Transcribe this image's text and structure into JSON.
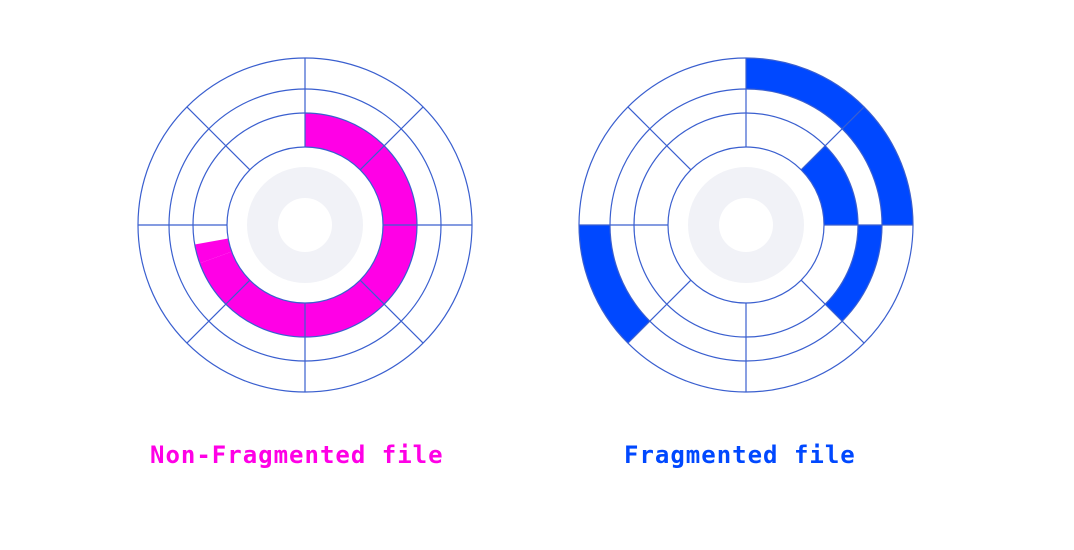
{
  "colors": {
    "grid": "#3a5fcf",
    "hub": "#f1f2f7",
    "background": "#ffffff",
    "non_fragmented": "#ff00e6",
    "fragmented": "#0048ff"
  },
  "disks": [
    {
      "id": "non-fragmented",
      "caption": "Non-Fragmented file",
      "caption_color": "#ff00e6",
      "fill_color": "#ff00e6",
      "tracks": 4,
      "sectors": 8,
      "file_blocks": [
        {
          "track": 1,
          "from_deg": 0,
          "to_deg": 250
        },
        {
          "track": 1,
          "from_deg": 250,
          "to_deg": 260
        }
      ]
    },
    {
      "id": "fragmented",
      "caption": "Fragmented file",
      "caption_color": "#0048ff",
      "fill_color": "#0048ff",
      "tracks": 4,
      "sectors": 8,
      "file_blocks": [
        {
          "track": 3,
          "from_deg": 0,
          "to_deg": 90
        },
        {
          "track": 1,
          "from_deg": 45,
          "to_deg": 90
        },
        {
          "track": 2,
          "from_deg": 90,
          "to_deg": 135
        },
        {
          "track": 3,
          "from_deg": 225,
          "to_deg": 270
        }
      ]
    }
  ]
}
